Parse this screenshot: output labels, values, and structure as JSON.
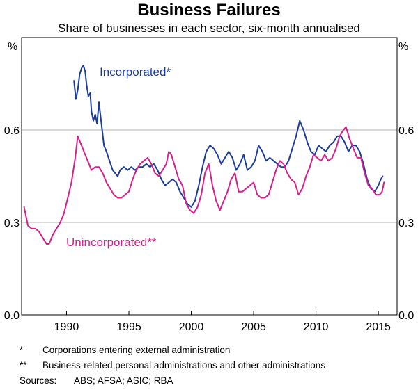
{
  "chart_data": {
    "type": "line",
    "title": "Business Failures",
    "subtitle": "Share of businesses in each sector, six-month annualised",
    "y_unit_left": "%",
    "y_unit_right": "%",
    "xlim": [
      1986.4,
      2016.5
    ],
    "ylim": [
      0.0,
      0.9
    ],
    "x_ticks": [
      1990,
      1995,
      2000,
      2005,
      2010,
      2015
    ],
    "y_ticks": [
      0.0,
      0.3,
      0.6
    ],
    "y_tick_labels": [
      "0.0",
      "0.3",
      "0.6"
    ],
    "grid": "horizontal",
    "series": [
      {
        "name": "Incorporated*",
        "color": "#1c3c98",
        "points": [
          [
            1990.6,
            0.76
          ],
          [
            1990.75,
            0.7
          ],
          [
            1990.9,
            0.73
          ],
          [
            1991.05,
            0.78
          ],
          [
            1991.2,
            0.8
          ],
          [
            1991.35,
            0.81
          ],
          [
            1991.5,
            0.79
          ],
          [
            1991.6,
            0.75
          ],
          [
            1991.75,
            0.71
          ],
          [
            1991.9,
            0.72
          ],
          [
            1992.0,
            0.66
          ],
          [
            1992.15,
            0.63
          ],
          [
            1992.3,
            0.65
          ],
          [
            1992.45,
            0.62
          ],
          [
            1992.6,
            0.69
          ],
          [
            1992.8,
            0.62
          ],
          [
            1993.0,
            0.55
          ],
          [
            1993.2,
            0.53
          ],
          [
            1993.45,
            0.5
          ],
          [
            1993.7,
            0.47
          ],
          [
            1993.9,
            0.46
          ],
          [
            1994.1,
            0.45
          ],
          [
            1994.3,
            0.47
          ],
          [
            1994.6,
            0.48
          ],
          [
            1994.9,
            0.47
          ],
          [
            1995.2,
            0.48
          ],
          [
            1995.5,
            0.47
          ],
          [
            1995.8,
            0.48
          ],
          [
            1996.1,
            0.48
          ],
          [
            1996.4,
            0.49
          ],
          [
            1996.7,
            0.48
          ],
          [
            1997.0,
            0.49
          ],
          [
            1997.3,
            0.47
          ],
          [
            1997.6,
            0.44
          ],
          [
            1997.9,
            0.42
          ],
          [
            1998.2,
            0.43
          ],
          [
            1998.5,
            0.44
          ],
          [
            1998.8,
            0.43
          ],
          [
            1999.1,
            0.4
          ],
          [
            1999.4,
            0.38
          ],
          [
            1999.7,
            0.36
          ],
          [
            2000.0,
            0.35
          ],
          [
            2000.3,
            0.37
          ],
          [
            2000.6,
            0.42
          ],
          [
            2000.9,
            0.48
          ],
          [
            2001.2,
            0.53
          ],
          [
            2001.5,
            0.55
          ],
          [
            2001.8,
            0.54
          ],
          [
            2002.1,
            0.52
          ],
          [
            2002.4,
            0.49
          ],
          [
            2002.7,
            0.51
          ],
          [
            2003.0,
            0.53
          ],
          [
            2003.3,
            0.51
          ],
          [
            2003.6,
            0.47
          ],
          [
            2003.9,
            0.49
          ],
          [
            2004.2,
            0.52
          ],
          [
            2004.5,
            0.47
          ],
          [
            2004.8,
            0.48
          ],
          [
            2005.1,
            0.5
          ],
          [
            2005.4,
            0.55
          ],
          [
            2005.7,
            0.53
          ],
          [
            2006.0,
            0.5
          ],
          [
            2006.3,
            0.51
          ],
          [
            2006.6,
            0.5
          ],
          [
            2006.9,
            0.49
          ],
          [
            2007.2,
            0.48
          ],
          [
            2007.5,
            0.48
          ],
          [
            2007.8,
            0.5
          ],
          [
            2008.1,
            0.54
          ],
          [
            2008.4,
            0.58
          ],
          [
            2008.7,
            0.63
          ],
          [
            2009.0,
            0.6
          ],
          [
            2009.3,
            0.56
          ],
          [
            2009.6,
            0.53
          ],
          [
            2009.9,
            0.52
          ],
          [
            2010.2,
            0.55
          ],
          [
            2010.5,
            0.54
          ],
          [
            2010.8,
            0.53
          ],
          [
            2011.1,
            0.55
          ],
          [
            2011.4,
            0.56
          ],
          [
            2011.7,
            0.58
          ],
          [
            2012.0,
            0.58
          ],
          [
            2012.3,
            0.56
          ],
          [
            2012.6,
            0.53
          ],
          [
            2012.9,
            0.55
          ],
          [
            2013.2,
            0.55
          ],
          [
            2013.5,
            0.53
          ],
          [
            2013.8,
            0.49
          ],
          [
            2014.1,
            0.44
          ],
          [
            2014.4,
            0.41
          ],
          [
            2014.7,
            0.4
          ],
          [
            2015.0,
            0.42
          ],
          [
            2015.2,
            0.44
          ],
          [
            2015.35,
            0.45
          ]
        ]
      },
      {
        "name": "Unincorporated**",
        "color": "#d41f8c",
        "points": [
          [
            1986.6,
            0.35
          ],
          [
            1986.9,
            0.29
          ],
          [
            1987.2,
            0.28
          ],
          [
            1987.5,
            0.28
          ],
          [
            1987.8,
            0.27
          ],
          [
            1988.1,
            0.25
          ],
          [
            1988.4,
            0.23
          ],
          [
            1988.6,
            0.23
          ],
          [
            1988.9,
            0.26
          ],
          [
            1989.2,
            0.28
          ],
          [
            1989.5,
            0.3
          ],
          [
            1989.8,
            0.33
          ],
          [
            1990.1,
            0.38
          ],
          [
            1990.4,
            0.43
          ],
          [
            1990.7,
            0.51
          ],
          [
            1990.9,
            0.58
          ],
          [
            1991.2,
            0.55
          ],
          [
            1991.5,
            0.52
          ],
          [
            1991.8,
            0.49
          ],
          [
            1992.0,
            0.47
          ],
          [
            1992.3,
            0.48
          ],
          [
            1992.6,
            0.48
          ],
          [
            1992.9,
            0.46
          ],
          [
            1993.2,
            0.43
          ],
          [
            1993.5,
            0.41
          ],
          [
            1993.8,
            0.39
          ],
          [
            1994.1,
            0.38
          ],
          [
            1994.4,
            0.38
          ],
          [
            1994.7,
            0.39
          ],
          [
            1995.0,
            0.4
          ],
          [
            1995.3,
            0.44
          ],
          [
            1995.6,
            0.47
          ],
          [
            1995.9,
            0.49
          ],
          [
            1996.2,
            0.5
          ],
          [
            1996.5,
            0.51
          ],
          [
            1996.8,
            0.49
          ],
          [
            1997.1,
            0.46
          ],
          [
            1997.4,
            0.45
          ],
          [
            1997.7,
            0.47
          ],
          [
            1998.0,
            0.49
          ],
          [
            1998.2,
            0.53
          ],
          [
            1998.4,
            0.52
          ],
          [
            1998.7,
            0.48
          ],
          [
            1999.0,
            0.44
          ],
          [
            1999.3,
            0.42
          ],
          [
            1999.6,
            0.36
          ],
          [
            1999.9,
            0.34
          ],
          [
            2000.2,
            0.33
          ],
          [
            2000.5,
            0.35
          ],
          [
            2000.8,
            0.39
          ],
          [
            2001.1,
            0.46
          ],
          [
            2001.4,
            0.49
          ],
          [
            2001.7,
            0.42
          ],
          [
            2002.0,
            0.37
          ],
          [
            2002.3,
            0.34
          ],
          [
            2002.6,
            0.37
          ],
          [
            2002.9,
            0.4
          ],
          [
            2003.2,
            0.44
          ],
          [
            2003.5,
            0.46
          ],
          [
            2003.8,
            0.4
          ],
          [
            2004.1,
            0.4
          ],
          [
            2004.4,
            0.41
          ],
          [
            2004.7,
            0.42
          ],
          [
            2005.0,
            0.43
          ],
          [
            2005.3,
            0.39
          ],
          [
            2005.6,
            0.38
          ],
          [
            2005.9,
            0.38
          ],
          [
            2006.2,
            0.39
          ],
          [
            2006.5,
            0.43
          ],
          [
            2006.8,
            0.47
          ],
          [
            2007.1,
            0.5
          ],
          [
            2007.4,
            0.49
          ],
          [
            2007.7,
            0.46
          ],
          [
            2008.0,
            0.44
          ],
          [
            2008.3,
            0.43
          ],
          [
            2008.6,
            0.39
          ],
          [
            2008.9,
            0.41
          ],
          [
            2009.2,
            0.45
          ],
          [
            2009.5,
            0.48
          ],
          [
            2009.8,
            0.52
          ],
          [
            2010.1,
            0.51
          ],
          [
            2010.4,
            0.5
          ],
          [
            2010.7,
            0.52
          ],
          [
            2011.0,
            0.5
          ],
          [
            2011.3,
            0.51
          ],
          [
            2011.6,
            0.54
          ],
          [
            2011.9,
            0.58
          ],
          [
            2012.2,
            0.6
          ],
          [
            2012.4,
            0.61
          ],
          [
            2012.7,
            0.57
          ],
          [
            2013.0,
            0.54
          ],
          [
            2013.3,
            0.51
          ],
          [
            2013.6,
            0.51
          ],
          [
            2013.9,
            0.46
          ],
          [
            2014.2,
            0.42
          ],
          [
            2014.5,
            0.41
          ],
          [
            2014.8,
            0.39
          ],
          [
            2015.1,
            0.39
          ],
          [
            2015.3,
            0.4
          ],
          [
            2015.45,
            0.43
          ]
        ]
      }
    ],
    "annotations": [
      {
        "text": "Incorporated*",
        "series": 0
      },
      {
        "text": "Unincorporated**",
        "series": 1
      }
    ]
  },
  "footnotes": [
    {
      "marker": "*",
      "text": "Corporations entering external administration"
    },
    {
      "marker": "**",
      "text": "Business-related personal administrations and other administrations"
    }
  ],
  "sources": {
    "label": "Sources:",
    "text": "ABS; AFSA; ASIC; RBA"
  }
}
